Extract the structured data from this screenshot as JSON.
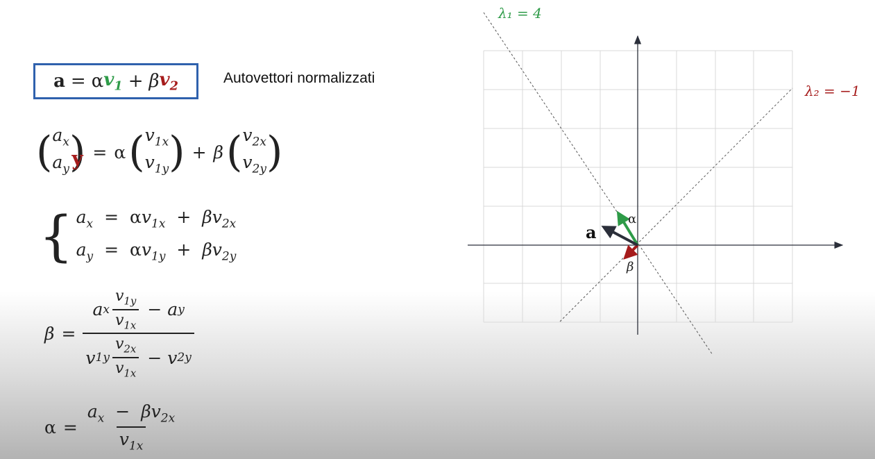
{
  "equation_box": {
    "a": "a",
    "eq": "=",
    "alpha": "α",
    "v1": "v",
    "v1_sub": "1",
    "plus": "+",
    "beta": "β",
    "v2": "v",
    "v2_sub": "2"
  },
  "caption": "Autovettori normalizzati",
  "vector_eq": {
    "ax": "a",
    "ax_sub": "x",
    "ay": "a",
    "ay_sub": "y",
    "y_overlay": "y",
    "v1x": "v",
    "v1x_sub": "1x",
    "v1y": "v",
    "v1y_sub": "1y",
    "v2x": "v",
    "v2x_sub": "2x",
    "v2y": "v",
    "v2y_sub": "2y",
    "eq": "=",
    "alpha": "α",
    "plus": "+",
    "beta": "β"
  },
  "system": {
    "line1": {
      "a": "a",
      "a_sub": "x",
      "eq": "=",
      "alpha": "α",
      "v": "v",
      "v_sub": "1x",
      "plus": "+",
      "beta": "β",
      "v2": "v",
      "v2_sub": "2x"
    },
    "line2": {
      "a": "a",
      "a_sub": "y",
      "eq": "=",
      "alpha": "α",
      "v": "v",
      "v_sub": "1y",
      "plus": "+",
      "beta": "β",
      "v2": "v",
      "v2_sub": "2y"
    }
  },
  "beta_formula": {
    "lhs": "β",
    "eq": "=",
    "ax": "a",
    "ax_sub": "x",
    "v1y": "v",
    "v1y_sub": "1y",
    "v1x": "v",
    "v1x_sub": "1x",
    "minus": "−",
    "ay": "a",
    "ay_sub": "y",
    "d_v1y": "v",
    "d_v1y_sub": "1y",
    "d_v2x": "v",
    "d_v2x_sub": "2x",
    "d_v1x": "v",
    "d_v1x_sub": "1x",
    "d_minus": "−",
    "d_v2y": "v",
    "d_v2y_sub": "2y"
  },
  "alpha_formula": {
    "lhs": "α",
    "eq": "=",
    "ax": "a",
    "ax_sub": "x",
    "minus": "−",
    "beta": "β",
    "v2x": "v",
    "v2x_sub": "2x",
    "v1x": "v",
    "v1x_sub": "1x"
  },
  "diagram": {
    "lambda1_label": "λ₁ = 4",
    "lambda2_label": "λ₂ = −1",
    "vec_a_label": "a",
    "alpha_label": "α",
    "beta_label": "β",
    "colors": {
      "green": "#2e9b48",
      "red": "#a61c1c",
      "dark": "#2b2f3a",
      "grid": "#d9d9d9"
    }
  }
}
